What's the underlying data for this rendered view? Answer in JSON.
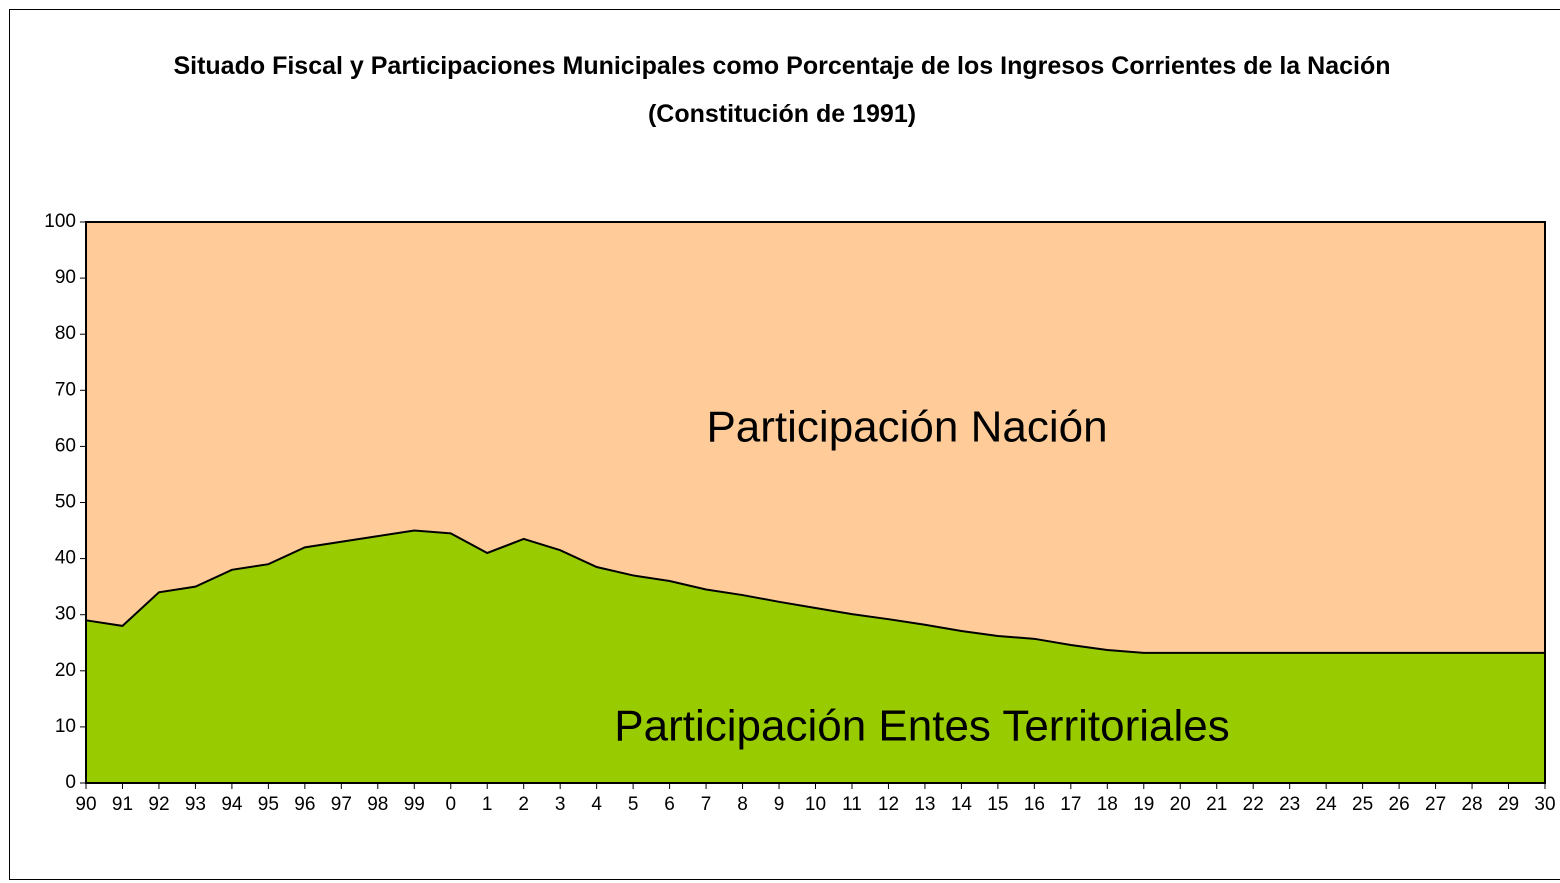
{
  "chart_data": {
    "type": "stacked_area",
    "title": "Situado Fiscal y Participaciones Municipales como Porcentaje de los Ingresos Corrientes de la Nación (Constitución de 1991)",
    "categories": [
      "90",
      "91",
      "92",
      "93",
      "94",
      "95",
      "96",
      "97",
      "98",
      "99",
      "0",
      "1",
      "2",
      "3",
      "4",
      "5",
      "6",
      "7",
      "8",
      "9",
      "10",
      "11",
      "12",
      "13",
      "14",
      "15",
      "16",
      "17",
      "18",
      "19",
      "20",
      "21",
      "22",
      "23",
      "24",
      "25",
      "26",
      "27",
      "28",
      "29",
      "30"
    ],
    "series": [
      {
        "name": "Participación Entes Territoriales",
        "color": "#99cc00",
        "values": [
          29,
          28,
          34,
          35,
          38,
          39,
          42,
          43,
          44,
          45,
          44.5,
          41,
          43.5,
          41.5,
          38.5,
          37,
          36,
          34.5,
          33.5,
          32.3,
          31.2,
          30.1,
          29.2,
          28.2,
          27.1,
          26.2,
          25.7,
          24.6,
          23.7,
          23.2,
          23.2,
          23.2,
          23.2,
          23.2,
          23.2,
          23.2,
          23.2,
          23.2,
          23.2,
          23.2,
          23.2
        ]
      },
      {
        "name": "Participación Nación",
        "color": "#ffcc99",
        "values": [
          71,
          72,
          66,
          65,
          62,
          61,
          58,
          57,
          56,
          55,
          55.5,
          59,
          56.5,
          58.5,
          61.5,
          63,
          64,
          65.5,
          66.5,
          67.7,
          68.8,
          69.9,
          70.8,
          71.8,
          72.9,
          73.8,
          74.3,
          75.4,
          76.3,
          76.8,
          76.8,
          76.8,
          76.8,
          76.8,
          76.8,
          76.8,
          76.8,
          76.8,
          76.8,
          76.8,
          76.8
        ]
      }
    ],
    "ylim": [
      0,
      100
    ],
    "yticks": [
      0,
      10,
      20,
      30,
      40,
      50,
      60,
      70,
      80,
      90,
      100
    ],
    "grid": false
  }
}
